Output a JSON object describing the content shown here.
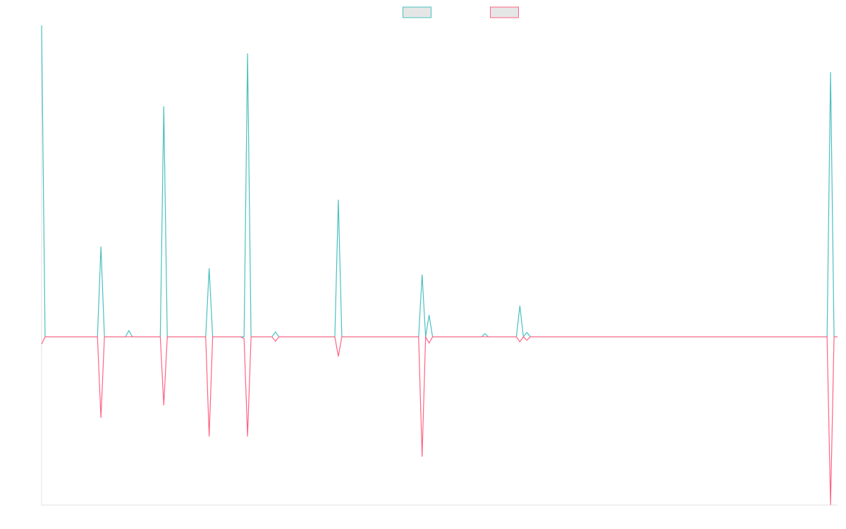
{
  "chart_data": {
    "type": "line",
    "x": [
      0,
      1,
      16,
      17,
      18,
      24,
      25,
      26,
      34,
      35,
      36,
      47,
      48,
      49,
      57,
      58,
      59,
      60,
      66,
      67,
      68,
      84,
      85,
      86,
      108,
      109,
      110,
      111,
      112,
      126,
      127,
      128,
      136,
      137,
      138,
      139,
      140,
      225,
      226,
      227,
      228
    ],
    "xlim": [
      0,
      228
    ],
    "ylim": [
      -54,
      100
    ],
    "legend": "top",
    "series": [
      {
        "color": "#4bc0c0",
        "values": [
          100,
          0,
          0,
          29,
          0,
          0,
          2,
          0,
          0,
          74,
          0,
          0,
          22,
          0,
          0,
          0,
          91,
          0,
          0,
          1.6,
          0,
          0,
          44,
          0,
          0,
          20,
          0,
          7,
          0,
          0,
          1,
          0,
          0,
          10,
          0,
          1.4,
          0,
          0,
          85,
          0,
          0
        ]
      },
      {
        "color": "#ff6384",
        "values": [
          -2.3,
          0,
          0,
          -26,
          0,
          0,
          0,
          0,
          0,
          -22,
          0,
          0,
          -32,
          0,
          0,
          -0.5,
          -32,
          0,
          0,
          -1.4,
          0,
          0,
          -6.3,
          0,
          0,
          -38.5,
          0,
          -2,
          0,
          0,
          0,
          0,
          0,
          -1.6,
          0,
          -1.1,
          0,
          0,
          -54,
          0,
          0
        ]
      }
    ]
  }
}
